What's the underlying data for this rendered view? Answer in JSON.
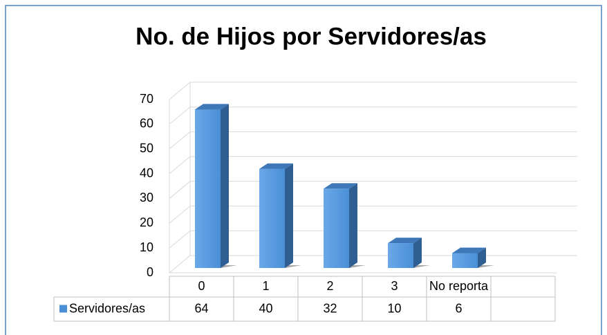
{
  "chart_data": {
    "type": "bar",
    "title": "No. de Hijos por Servidores/as",
    "categories": [
      "0",
      "1",
      "2",
      "3",
      "No reporta"
    ],
    "series": [
      {
        "name": "Servidores/as",
        "color": "#4a8fd6",
        "values": [
          64,
          40,
          32,
          10,
          6
        ]
      }
    ],
    "ylim": [
      0,
      70
    ],
    "yticks": [
      0,
      10,
      20,
      30,
      40,
      50,
      60,
      70
    ],
    "grid": true,
    "data_table": true
  }
}
